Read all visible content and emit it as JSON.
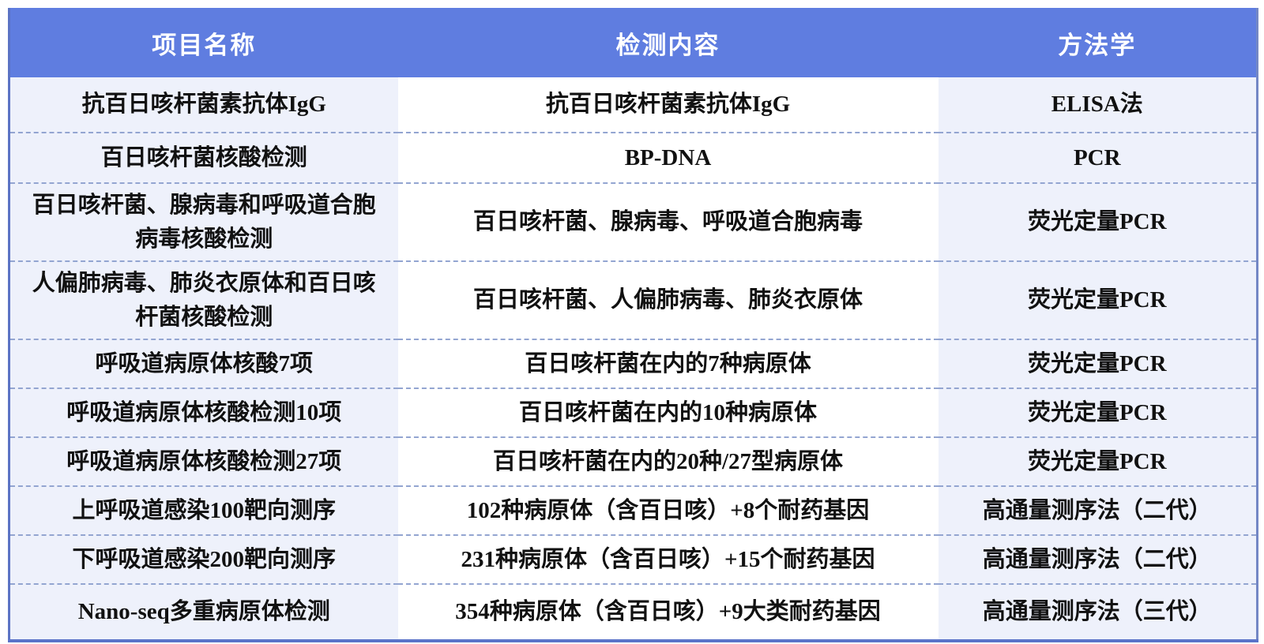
{
  "table": {
    "columns": [
      "项目名称",
      "检测内容",
      "方法学"
    ],
    "rows": [
      {
        "project": "抗百日咳杆菌素抗体IgG",
        "content": "抗百日咳杆菌素抗体IgG",
        "method": "ELISA法"
      },
      {
        "project": "百日咳杆菌核酸检测",
        "content": "BP-DNA",
        "method": "PCR"
      },
      {
        "project": "百日咳杆菌、腺病毒和呼吸道合胞病毒核酸检测",
        "content": "百日咳杆菌、腺病毒、呼吸道合胞病毒",
        "method": "荧光定量PCR"
      },
      {
        "project": "人偏肺病毒、肺炎衣原体和百日咳杆菌核酸检测",
        "content": "百日咳杆菌、人偏肺病毒、肺炎衣原体",
        "method": "荧光定量PCR"
      },
      {
        "project": "呼吸道病原体核酸7项",
        "content": "百日咳杆菌在内的7种病原体",
        "method": "荧光定量PCR"
      },
      {
        "project": "呼吸道病原体核酸检测10项",
        "content": "百日咳杆菌在内的10种病原体",
        "method": "荧光定量PCR"
      },
      {
        "project": "呼吸道病原体核酸检测27项",
        "content": "百日咳杆菌在内的20种/27型病原体",
        "method": "荧光定量PCR"
      },
      {
        "project": "上呼吸道感染100靶向测序",
        "content": "102种病原体（含百日咳）+8个耐药基因",
        "method": "高通量测序法（二代）"
      },
      {
        "project": "下呼吸道感染200靶向测序",
        "content": "231种病原体（含百日咳）+15个耐药基因",
        "method": "高通量测序法（二代）"
      },
      {
        "project": "Nano-seq多重病原体检测",
        "content": "354种病原体（含百日咳）+9大类耐药基因",
        "method": "高通量测序法（三代）"
      }
    ],
    "colors": {
      "header_bg": "#5f7de0",
      "header_text": "#ffffff",
      "stripe_bg": "#eef1fb",
      "content_bg": "#ffffff",
      "body_text": "#111111",
      "outer_border": "#5b73c9",
      "row_divider_dashed": "#93a5d1"
    }
  }
}
